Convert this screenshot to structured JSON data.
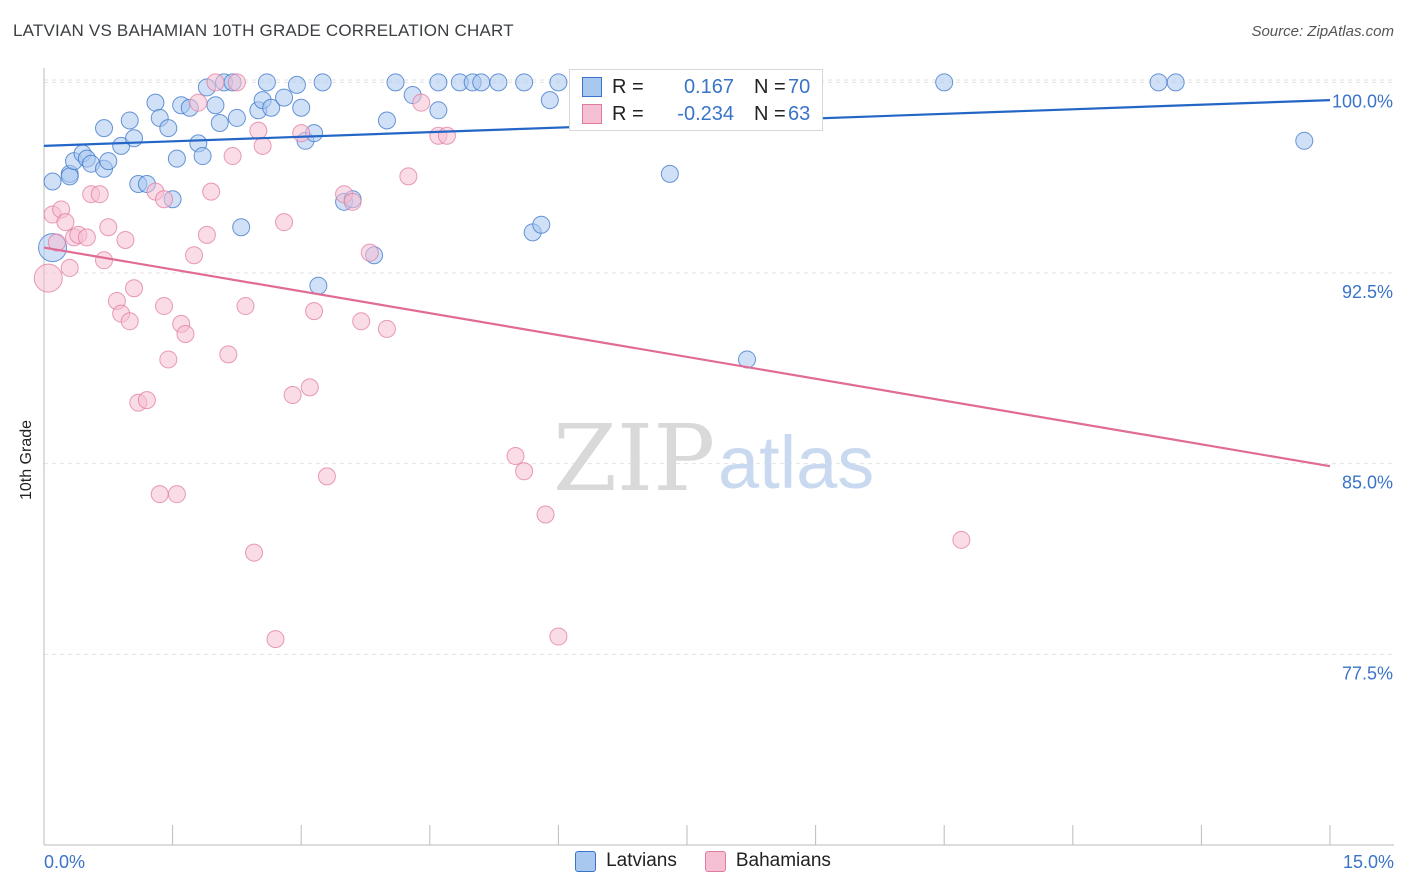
{
  "title": "LATVIAN VS BAHAMIAN 10TH GRADE CORRELATION CHART",
  "source": "Source: ZipAtlas.com",
  "watermark": {
    "zip": "ZIP",
    "atlas": "atlas"
  },
  "colors": {
    "blue_fill": "#a9c8f0",
    "blue_stroke": "#3a74c8",
    "blue_line": "#2466c6",
    "pink_fill": "#f5c0d3",
    "pink_stroke": "#e07ba0",
    "pink_line": "#e06b95",
    "tick_text": "#3a74c8",
    "grid": "#e2e2e2"
  },
  "stats": [
    {
      "r_label": "R =",
      "r_value": "0.167",
      "n_label": "N =",
      "n_value": "70"
    },
    {
      "r_label": "R =",
      "r_value": "-0.234",
      "n_label": "N =",
      "n_value": "63"
    }
  ],
  "legend": [
    "Latvians",
    "Bahamians"
  ],
  "chart_data": {
    "type": "scatter",
    "title": "LATVIAN VS BAHAMIAN 10TH GRADE CORRELATION CHART",
    "xlabel": "",
    "ylabel": "10th Grade",
    "xlim": [
      0,
      15
    ],
    "ylim": [
      70,
      100.8
    ],
    "x_tick_labels": [
      "0.0%",
      "15.0%"
    ],
    "y_ticks": [
      77.5,
      85.0,
      92.5,
      100.0
    ],
    "y_tick_labels": [
      "77.5%",
      "85.0%",
      "92.5%",
      "100.0%"
    ],
    "grid": true,
    "series": [
      {
        "name": "Latvians",
        "trend": {
          "x": [
            0,
            15
          ],
          "y": [
            97.5,
            99.3
          ]
        },
        "points": [
          [
            0.1,
            93.5
          ],
          [
            0.1,
            96.1
          ],
          [
            0.3,
            96.4
          ],
          [
            0.3,
            96.3
          ],
          [
            0.35,
            96.9
          ],
          [
            0.45,
            97.2
          ],
          [
            0.5,
            97.0
          ],
          [
            0.55,
            96.8
          ],
          [
            0.7,
            96.6
          ],
          [
            0.75,
            96.9
          ],
          [
            0.7,
            98.2
          ],
          [
            0.9,
            97.5
          ],
          [
            1.0,
            98.5
          ],
          [
            1.05,
            97.8
          ],
          [
            1.1,
            96.0
          ],
          [
            1.2,
            96.0
          ],
          [
            1.3,
            99.2
          ],
          [
            1.35,
            98.6
          ],
          [
            1.45,
            98.2
          ],
          [
            1.5,
            95.4
          ],
          [
            1.55,
            97.0
          ],
          [
            1.6,
            99.1
          ],
          [
            1.7,
            99.0
          ],
          [
            1.8,
            97.6
          ],
          [
            1.85,
            97.1
          ],
          [
            1.9,
            99.8
          ],
          [
            2.0,
            99.1
          ],
          [
            2.05,
            98.4
          ],
          [
            2.1,
            100.0
          ],
          [
            2.2,
            100.0
          ],
          [
            2.25,
            98.6
          ],
          [
            2.3,
            94.3
          ],
          [
            2.5,
            98.9
          ],
          [
            2.55,
            99.3
          ],
          [
            2.6,
            100.0
          ],
          [
            2.65,
            99.0
          ],
          [
            2.8,
            99.4
          ],
          [
            2.95,
            99.9
          ],
          [
            3.05,
            97.7
          ],
          [
            3.0,
            99.0
          ],
          [
            3.15,
            98.0
          ],
          [
            3.2,
            92.0
          ],
          [
            3.25,
            100.0
          ],
          [
            3.5,
            95.3
          ],
          [
            3.6,
            95.4
          ],
          [
            3.85,
            93.2
          ],
          [
            4.0,
            98.5
          ],
          [
            4.1,
            100.0
          ],
          [
            4.3,
            99.5
          ],
          [
            4.6,
            100.0
          ],
          [
            4.6,
            98.9
          ],
          [
            4.85,
            100.0
          ],
          [
            5.0,
            100.0
          ],
          [
            5.1,
            100.0
          ],
          [
            5.3,
            100.0
          ],
          [
            5.6,
            100.0
          ],
          [
            5.7,
            94.1
          ],
          [
            5.8,
            94.4
          ],
          [
            5.9,
            99.3
          ],
          [
            6.0,
            100.0
          ],
          [
            6.5,
            100.0
          ],
          [
            7.0,
            100.0
          ],
          [
            7.3,
            96.4
          ],
          [
            7.5,
            100.0
          ],
          [
            8.0,
            100.0
          ],
          [
            8.2,
            89.1
          ],
          [
            10.5,
            100.0
          ],
          [
            13.0,
            100.0
          ],
          [
            13.2,
            100.0
          ],
          [
            14.7,
            97.7
          ]
        ]
      },
      {
        "name": "Bahamians",
        "trend": {
          "x": [
            0,
            15
          ],
          "y": [
            93.5,
            84.9
          ]
        },
        "points": [
          [
            0.05,
            92.3
          ],
          [
            0.1,
            94.8
          ],
          [
            0.15,
            93.7
          ],
          [
            0.2,
            95.0
          ],
          [
            0.25,
            94.5
          ],
          [
            0.3,
            92.7
          ],
          [
            0.35,
            93.9
          ],
          [
            0.4,
            94.0
          ],
          [
            0.5,
            93.9
          ],
          [
            0.55,
            95.6
          ],
          [
            0.65,
            95.6
          ],
          [
            0.7,
            93.0
          ],
          [
            0.75,
            94.3
          ],
          [
            0.85,
            91.4
          ],
          [
            0.9,
            90.9
          ],
          [
            0.95,
            93.8
          ],
          [
            1.0,
            90.6
          ],
          [
            1.05,
            91.9
          ],
          [
            1.1,
            87.4
          ],
          [
            1.2,
            87.5
          ],
          [
            1.3,
            95.7
          ],
          [
            1.35,
            83.8
          ],
          [
            1.4,
            95.4
          ],
          [
            1.4,
            91.2
          ],
          [
            1.45,
            89.1
          ],
          [
            1.55,
            83.8
          ],
          [
            1.6,
            90.5
          ],
          [
            1.65,
            90.1
          ],
          [
            1.75,
            93.2
          ],
          [
            1.8,
            99.2
          ],
          [
            1.9,
            94.0
          ],
          [
            1.95,
            95.7
          ],
          [
            2.0,
            100.0
          ],
          [
            2.15,
            89.3
          ],
          [
            2.2,
            97.1
          ],
          [
            2.25,
            100.0
          ],
          [
            2.35,
            91.2
          ],
          [
            2.45,
            81.5
          ],
          [
            2.5,
            98.1
          ],
          [
            2.55,
            97.5
          ],
          [
            2.7,
            78.1
          ],
          [
            2.8,
            94.5
          ],
          [
            2.9,
            87.7
          ],
          [
            3.0,
            98.0
          ],
          [
            3.1,
            88.0
          ],
          [
            3.15,
            91.0
          ],
          [
            3.3,
            84.5
          ],
          [
            3.5,
            95.6
          ],
          [
            3.6,
            95.3
          ],
          [
            3.7,
            90.6
          ],
          [
            3.8,
            93.3
          ],
          [
            4.0,
            90.3
          ],
          [
            4.25,
            96.3
          ],
          [
            4.4,
            99.2
          ],
          [
            4.6,
            97.9
          ],
          [
            4.7,
            97.9
          ],
          [
            5.5,
            85.3
          ],
          [
            5.6,
            84.7
          ],
          [
            5.85,
            83.0
          ],
          [
            6.0,
            78.2
          ],
          [
            7.25,
            100.0
          ],
          [
            7.9,
            100.0
          ],
          [
            10.7,
            82.0
          ]
        ]
      }
    ]
  }
}
